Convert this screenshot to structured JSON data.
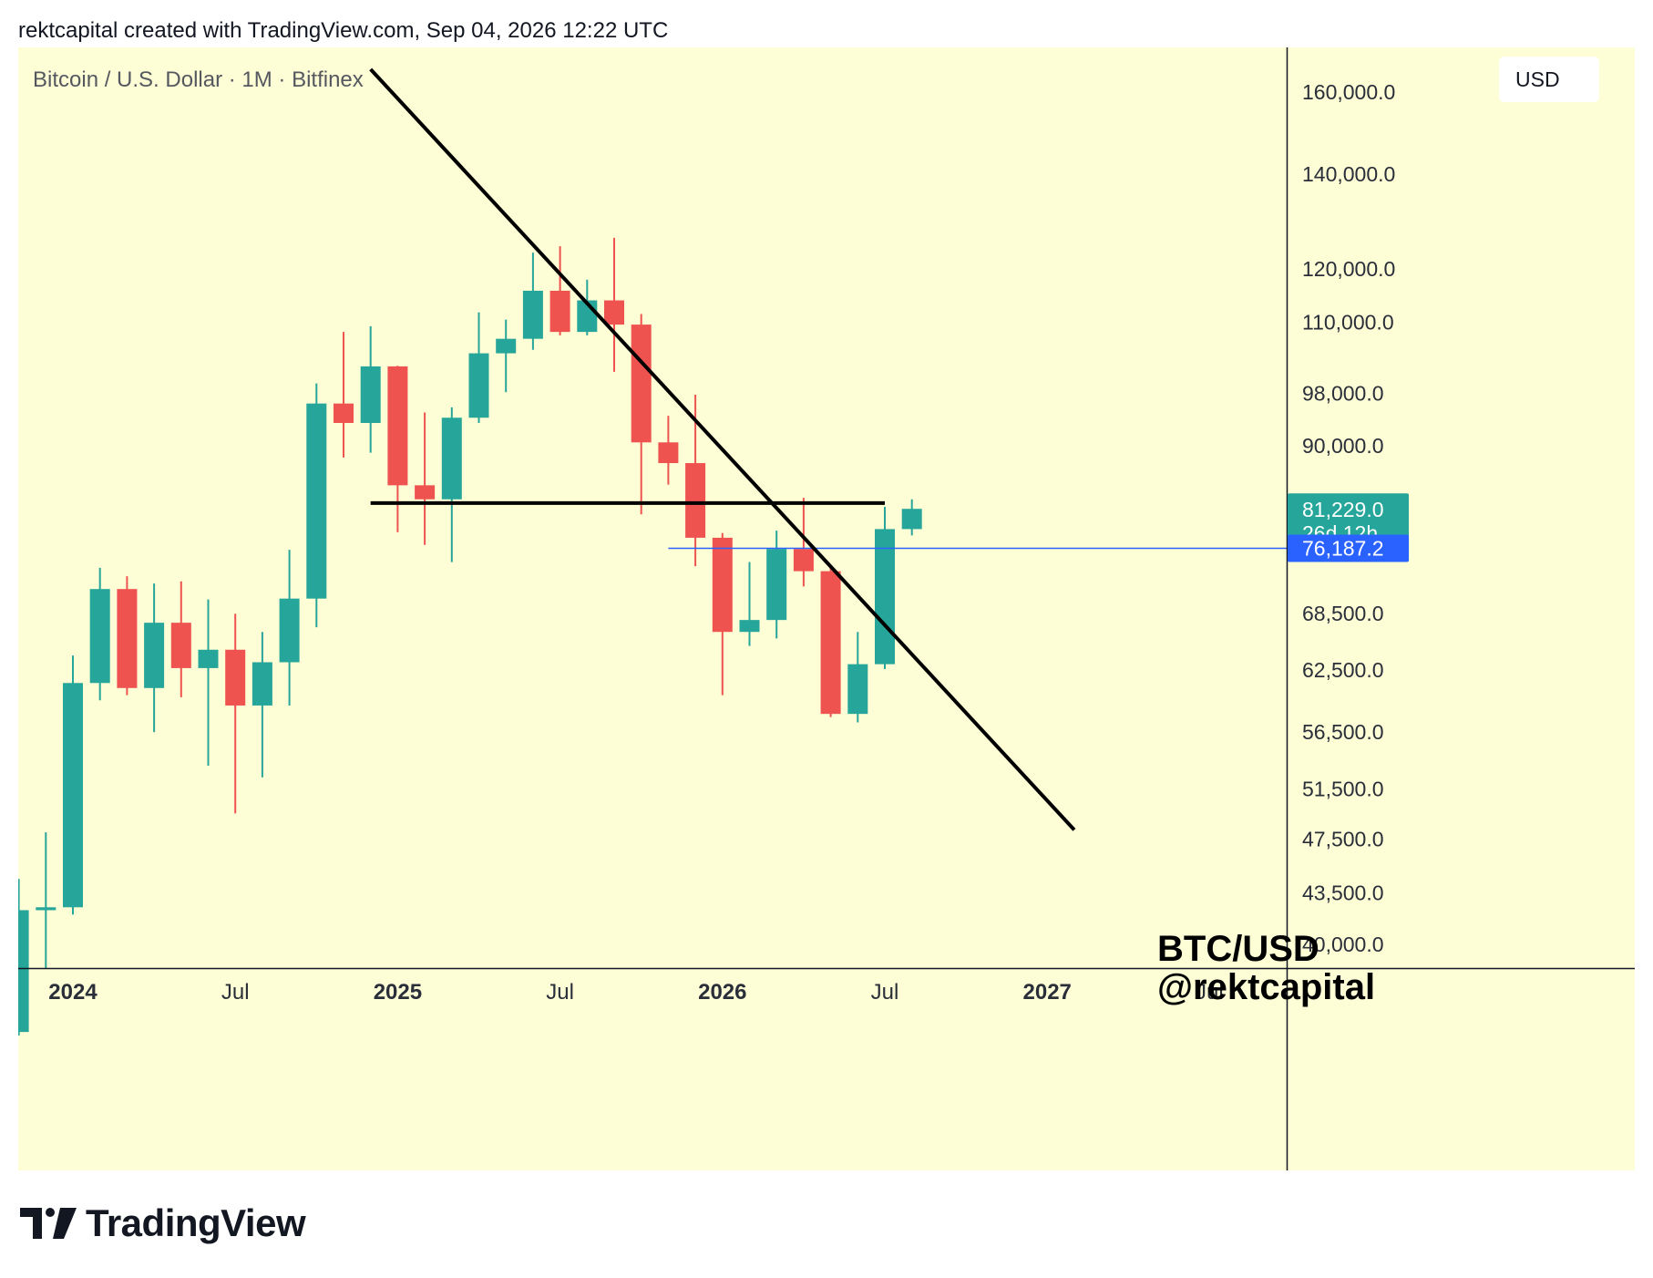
{
  "header": {
    "attribution": "rektcapital created with TradingView.com, Sep 04, 2026 12:22 UTC"
  },
  "chart_header": {
    "symbol_title": "Bitcoin / U.S. Dollar · 1M · Bitfinex",
    "currency_label": "USD"
  },
  "watermark": {
    "line1": "BTC/USD",
    "line2": "@rektcapital"
  },
  "footer": {
    "logo_text": "TradingView"
  },
  "colors": {
    "up": "#26a69a",
    "down": "#ef5350",
    "background": "#fdfdd6",
    "horizontal_line": "#2962ff",
    "trendline": "#000000"
  },
  "chart_data": {
    "type": "candlestick",
    "interval": "1M",
    "y_scale": "log",
    "ylim": [
      38500,
      172000
    ],
    "y_ticks": [
      {
        "value": 160000,
        "label": "160,000.0"
      },
      {
        "value": 140000,
        "label": "140,000.0"
      },
      {
        "value": 120000,
        "label": "120,000.0"
      },
      {
        "value": 110000,
        "label": "110,000.0"
      },
      {
        "value": 98000,
        "label": "98,000.0"
      },
      {
        "value": 90000,
        "label": "90,000.0"
      },
      {
        "value": 68500,
        "label": "68,500.0"
      },
      {
        "value": 62500,
        "label": "62,500.0"
      },
      {
        "value": 56500,
        "label": "56,500.0"
      },
      {
        "value": 51500,
        "label": "51,500.0"
      },
      {
        "value": 47500,
        "label": "47,500.0"
      },
      {
        "value": 43500,
        "label": "43,500.0"
      },
      {
        "value": 40000,
        "label": "40,000.0"
      }
    ],
    "x_ticks": [
      {
        "date": "2024-01",
        "label": "2024",
        "bold": true
      },
      {
        "date": "2024-07",
        "label": "Jul",
        "bold": false
      },
      {
        "date": "2025-01",
        "label": "2025",
        "bold": true
      },
      {
        "date": "2025-07",
        "label": "Jul",
        "bold": false
      },
      {
        "date": "2026-01",
        "label": "2026",
        "bold": true
      },
      {
        "date": "2026-07",
        "label": "Jul",
        "bold": false
      },
      {
        "date": "2027-01",
        "label": "2027",
        "bold": true
      },
      {
        "date": "2027-07",
        "label": "Jul",
        "bold": false
      }
    ],
    "candles": [
      {
        "date": "2023-11",
        "open": 34700,
        "high": 44500,
        "low": 34500,
        "close": 42300
      },
      {
        "date": "2023-12",
        "open": 42300,
        "high": 48000,
        "low": 38500,
        "close": 42500
      },
      {
        "date": "2024-01",
        "open": 42500,
        "high": 64000,
        "low": 42000,
        "close": 61200
      },
      {
        "date": "2024-02",
        "open": 61200,
        "high": 73800,
        "low": 59500,
        "close": 71300
      },
      {
        "date": "2024-03",
        "open": 71300,
        "high": 72800,
        "low": 60000,
        "close": 60700
      },
      {
        "date": "2024-04",
        "open": 60700,
        "high": 71950,
        "low": 56500,
        "close": 67500
      },
      {
        "date": "2024-05",
        "open": 67500,
        "high": 72200,
        "low": 59800,
        "close": 62700
      },
      {
        "date": "2024-06",
        "open": 62700,
        "high": 70100,
        "low": 53500,
        "close": 64600
      },
      {
        "date": "2024-07",
        "open": 64600,
        "high": 68500,
        "low": 49500,
        "close": 59000
      },
      {
        "date": "2024-08",
        "open": 59000,
        "high": 66500,
        "low": 52500,
        "close": 63300
      },
      {
        "date": "2024-09",
        "open": 63300,
        "high": 76000,
        "low": 59000,
        "close": 70200
      },
      {
        "date": "2024-10",
        "open": 70200,
        "high": 99600,
        "low": 67000,
        "close": 96400
      },
      {
        "date": "2024-11",
        "open": 96400,
        "high": 108300,
        "low": 88300,
        "close": 93400
      },
      {
        "date": "2024-12",
        "open": 93400,
        "high": 109300,
        "low": 89000,
        "close": 102400
      },
      {
        "date": "2025-01",
        "open": 102400,
        "high": 102500,
        "low": 78200,
        "close": 84400
      },
      {
        "date": "2025-02",
        "open": 84400,
        "high": 95000,
        "low": 76600,
        "close": 82500
      },
      {
        "date": "2025-03",
        "open": 82500,
        "high": 95800,
        "low": 74500,
        "close": 94200
      },
      {
        "date": "2025-04",
        "open": 94200,
        "high": 111800,
        "low": 93400,
        "close": 104600
      },
      {
        "date": "2025-05",
        "open": 104600,
        "high": 110500,
        "low": 98200,
        "close": 107100
      },
      {
        "date": "2025-06",
        "open": 107100,
        "high": 123200,
        "low": 105200,
        "close": 115800
      },
      {
        "date": "2025-07",
        "open": 115800,
        "high": 124500,
        "low": 107700,
        "close": 108300
      },
      {
        "date": "2025-08",
        "open": 108300,
        "high": 117900,
        "low": 107700,
        "close": 114000
      },
      {
        "date": "2025-09",
        "open": 114000,
        "high": 126200,
        "low": 101500,
        "close": 109600
      },
      {
        "date": "2025-10",
        "open": 109600,
        "high": 111500,
        "low": 80500,
        "close": 90500
      },
      {
        "date": "2025-11",
        "open": 90500,
        "high": 94500,
        "low": 84500,
        "close": 87500
      },
      {
        "date": "2025-12",
        "open": 87500,
        "high": 97800,
        "low": 74000,
        "close": 77500
      },
      {
        "date": "2026-01",
        "open": 77500,
        "high": 78100,
        "low": 60000,
        "close": 66500
      },
      {
        "date": "2026-02",
        "open": 66500,
        "high": 74500,
        "low": 65000,
        "close": 67800
      },
      {
        "date": "2026-03",
        "open": 67800,
        "high": 78400,
        "low": 65800,
        "close": 76100
      },
      {
        "date": "2026-04",
        "open": 76100,
        "high": 82700,
        "low": 71600,
        "close": 73400
      },
      {
        "date": "2026-05",
        "open": 73400,
        "high": 74100,
        "low": 57900,
        "close": 58200
      },
      {
        "date": "2026-06",
        "open": 58200,
        "high": 66500,
        "low": 57400,
        "close": 63100
      },
      {
        "date": "2026-07",
        "open": 63100,
        "high": 81500,
        "low": 62600,
        "close": 78600
      },
      {
        "date": "2026-08",
        "open": 78600,
        "high": 82500,
        "low": 77800,
        "close": 81229
      }
    ],
    "horizontal_line": {
      "price": 76187.2,
      "label": "76,187.2",
      "from": "2025-11"
    },
    "support_level": {
      "price": 82000,
      "from": "2024-12",
      "to": "2026-07"
    },
    "trendline": {
      "from": {
        "date": "2024-12",
        "price": 166000
      },
      "to": {
        "date": "2027-02",
        "price": 48200
      }
    },
    "last_price": {
      "price": 81229,
      "label": "81,229.0",
      "countdown": "26d 12h"
    }
  }
}
